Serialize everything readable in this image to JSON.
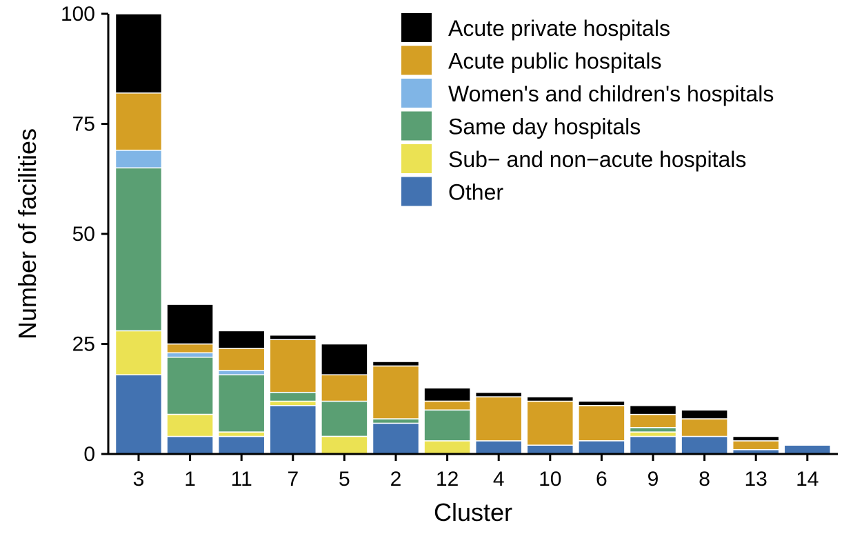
{
  "chart_data": {
    "type": "bar",
    "stacked": true,
    "xlabel": "Cluster",
    "ylabel": "Number of facilities",
    "ylim": [
      0,
      100
    ],
    "yticks": [
      0,
      25,
      50,
      75,
      100
    ],
    "legend_position": "top-right",
    "categories": [
      "3",
      "1",
      "11",
      "7",
      "5",
      "2",
      "12",
      "4",
      "10",
      "6",
      "9",
      "8",
      "13",
      "14"
    ],
    "series": [
      {
        "name": "Other",
        "color": "#4272b1",
        "values": [
          18,
          4,
          4,
          11,
          0,
          7,
          0,
          3,
          2,
          3,
          4,
          4,
          1,
          2
        ]
      },
      {
        "name": "Sub− and non−acute hospitals",
        "color": "#ebe253",
        "values": [
          10,
          5,
          1,
          1,
          4,
          0,
          3,
          0,
          0,
          0,
          1,
          0,
          0,
          0
        ]
      },
      {
        "name": "Same day hospitals",
        "color": "#5a9f73",
        "values": [
          37,
          13,
          13,
          2,
          8,
          1,
          7,
          0,
          0,
          0,
          1,
          0,
          0,
          0
        ]
      },
      {
        "name": "Women's and children's hospitals",
        "color": "#80b5e6",
        "values": [
          4,
          1,
          1,
          0,
          0,
          0,
          0,
          0,
          0,
          0,
          0,
          0,
          0,
          0
        ]
      },
      {
        "name": "Acute public hospitals",
        "color": "#d59f24",
        "values": [
          13,
          2,
          5,
          12,
          6,
          12,
          2,
          10,
          10,
          8,
          3,
          4,
          2,
          0
        ]
      },
      {
        "name": "Acute private hospitals",
        "color": "#000000",
        "values": [
          18,
          9,
          4,
          1,
          7,
          1,
          3,
          1,
          1,
          1,
          2,
          2,
          1,
          0
        ]
      }
    ],
    "legend_order": [
      "Acute private hospitals",
      "Acute public hospitals",
      "Women's and children's hospitals",
      "Same day hospitals",
      "Sub− and non−acute hospitals",
      "Other"
    ]
  }
}
